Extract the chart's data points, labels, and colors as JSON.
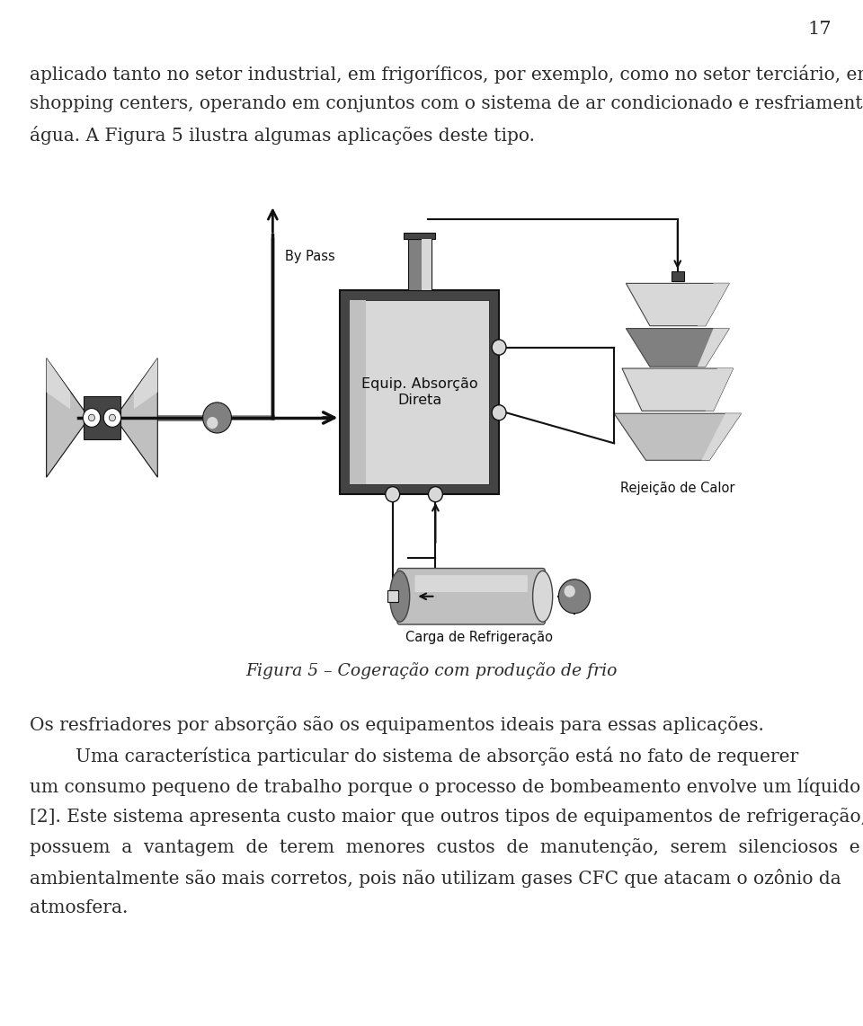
{
  "page_number": "17",
  "bg_color": "#ffffff",
  "text_color": "#2a2a2a",
  "font_size_body": 14.5,
  "font_size_caption": 13.5,
  "font_size_pagenum": 15.0,
  "font_size_diag": 10.5,
  "lines_p1": [
    "aplicado tanto no setor industrial, em frigoríficos, por exemplo, como no setor terciário, em",
    "shopping centers, operando em conjuntos com o sistema de ar condicionado e resfriamento de",
    "água. A Figura 5 ilustra algumas aplicações deste tipo."
  ],
  "figure_caption": "Figura 5 – Cogeração com produção de frio",
  "lines_p2": [
    "Os resfriadores por absorção são os equipamentos ideais para essas aplicações.",
    "        Uma característica particular do sistema de absorção está no fato de requerer",
    "um consumo pequeno de trabalho porque o processo de bombeamento envolve um líquido",
    "[2]. Este sistema apresenta custo maior que outros tipos de equipamentos de refrigeração, mas",
    "possuem  a  vantagem  de  terem  menores  custos  de  manutenção,  serem  silenciosos  e",
    "ambientalmente são mais corretos, pois não utilizam gases CFC que atacam o ozônio da",
    "atmosfera."
  ],
  "label_bypass": "By Pass",
  "label_equip": "Equip. Absorção\nDireta",
  "label_rejeicao": "Rejeição de Calor",
  "label_carga": "Carga de Refrigeração",
  "dark_gray": "#444444",
  "mid_gray": "#808080",
  "light_gray": "#c0c0c0",
  "lighter_gray": "#d8d8d8",
  "darkest": "#111111",
  "white": "#ffffff"
}
